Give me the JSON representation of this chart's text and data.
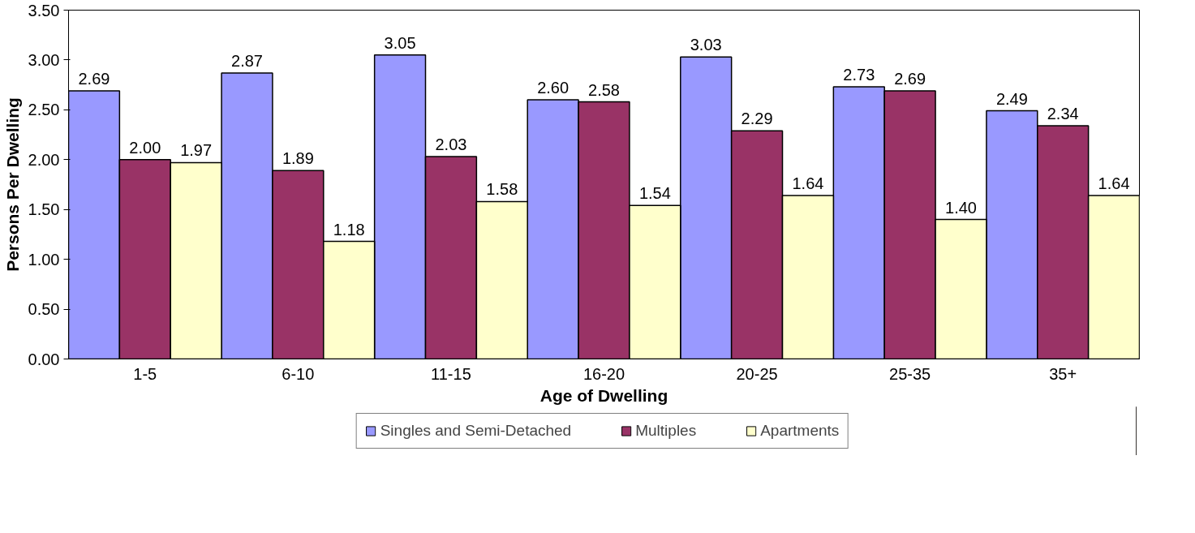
{
  "chart_data": {
    "type": "bar",
    "xlabel": "Age of Dwelling",
    "ylabel": "Persons Per Dwelling",
    "categories": [
      "1-5",
      "6-10",
      "11-15",
      "16-20",
      "20-25",
      "25-35",
      "35+"
    ],
    "series": [
      {
        "name": "Singles and Semi-Detached",
        "color": "#9999ff",
        "values": [
          2.69,
          2.87,
          3.05,
          2.6,
          3.03,
          2.73,
          2.49
        ],
        "value_labels": [
          "2.69",
          "2.87",
          "3.05",
          "2.60",
          "3.03",
          "2.73",
          "2.49"
        ]
      },
      {
        "name": "Multiples",
        "color": "#993366",
        "values": [
          2.0,
          1.89,
          2.03,
          2.58,
          2.29,
          2.69,
          2.34
        ],
        "value_labels": [
          "2.00",
          "1.89",
          "2.03",
          "2.58",
          "2.29",
          "2.69",
          "2.34"
        ]
      },
      {
        "name": "Apartments",
        "color": "#ffffcc",
        "values": [
          1.97,
          1.18,
          1.58,
          1.54,
          1.64,
          1.4,
          1.64
        ],
        "value_labels": [
          "1.97",
          "1.18",
          "1.58",
          "1.54",
          "1.64",
          "1.40",
          "1.64"
        ]
      }
    ],
    "ylim": [
      0,
      3.5
    ],
    "yticks": [
      {
        "value": 0,
        "label": "0.00"
      },
      {
        "value": 0.5,
        "label": "0.50"
      },
      {
        "value": 1,
        "label": "1.00"
      },
      {
        "value": 1.5,
        "label": "1.50"
      },
      {
        "value": 2,
        "label": "2.00"
      },
      {
        "value": 2.5,
        "label": "2.50"
      },
      {
        "value": 3,
        "label": "3.00"
      },
      {
        "value": 3.5,
        "label": "3.50"
      }
    ],
    "grid": false,
    "legend": "bottom"
  }
}
